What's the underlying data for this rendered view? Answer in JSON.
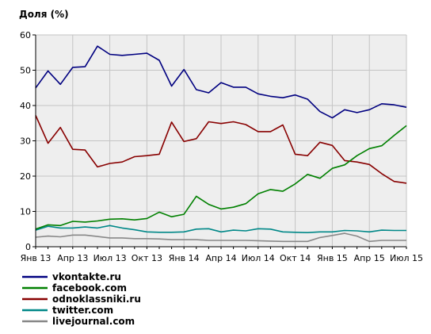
{
  "chart_data": {
    "type": "line",
    "ylabel": "Доля (%)",
    "xlabel": "",
    "ylim": [
      0,
      60
    ],
    "yticks": [
      0,
      10,
      20,
      30,
      40,
      50,
      60
    ],
    "grid": true,
    "legend_position": "bottom-left",
    "x": [
      "2013-01",
      "2013-02",
      "2013-03",
      "2013-04",
      "2013-05",
      "2013-06",
      "2013-07",
      "2013-08",
      "2013-09",
      "2013-10",
      "2013-11",
      "2013-12",
      "2014-01",
      "2014-02",
      "2014-03",
      "2014-04",
      "2014-05",
      "2014-06",
      "2014-07",
      "2014-08",
      "2014-09",
      "2014-10",
      "2014-11",
      "2014-12",
      "2015-01",
      "2015-02",
      "2015-03",
      "2015-04",
      "2015-05",
      "2015-06",
      "2015-07"
    ],
    "xtick_labels": [
      "Янв 13",
      "Апр 13",
      "Июл 13",
      "Окт 13",
      "Янв 14",
      "Апр 14",
      "Июл 14",
      "Окт 14",
      "Янв 15",
      "Апр 15",
      "Июл 15"
    ],
    "series": [
      {
        "name": "vkontakte.ru",
        "color": "#000080",
        "values": [
          45,
          49.8,
          46,
          50.8,
          51,
          56.8,
          54.5,
          54.2,
          54.5,
          54.8,
          52.8,
          45.5,
          50.2,
          44.5,
          43.6,
          46.5,
          45.2,
          45.2,
          43.3,
          42.6,
          42.2,
          43,
          41.8,
          38.3,
          36.5,
          38.8,
          38,
          38.8,
          40.5,
          40.2,
          39.5
        ]
      },
      {
        "name": "facebook.com",
        "color": "#008000",
        "values": [
          5,
          6.2,
          6,
          7.2,
          7,
          7.3,
          7.8,
          7.9,
          7.6,
          8,
          9.8,
          8.5,
          9.2,
          14.3,
          12,
          10.7,
          11.2,
          12.2,
          15,
          16.2,
          15.7,
          17.8,
          20.5,
          19.4,
          22.2,
          23.2,
          25.8,
          27.8,
          28.6,
          31.5,
          34.3
        ]
      },
      {
        "name": "odnoklassniki.ru",
        "color": "#880000",
        "values": [
          37.2,
          29.3,
          33.8,
          27.6,
          27.4,
          22.6,
          23.6,
          24,
          25.5,
          25.8,
          26.2,
          35.3,
          29.8,
          30.6,
          35.4,
          34.9,
          35.4,
          34.6,
          32.6,
          32.6,
          34.5,
          26.2,
          25.8,
          29.6,
          28.7,
          24.4,
          24,
          23.3,
          20.7,
          18.5,
          18
        ]
      },
      {
        "name": "twitter.com",
        "color": "#008888",
        "values": [
          4.7,
          5.8,
          5.3,
          5.3,
          5.6,
          5.3,
          6,
          5.3,
          4.8,
          4.2,
          4.1,
          4.1,
          4.2,
          5,
          5.1,
          4.2,
          4.7,
          4.5,
          5.1,
          5,
          4.2,
          4.1,
          4,
          4.2,
          4.2,
          4.6,
          4.5,
          4.2,
          4.7,
          4.6,
          4.6
        ]
      },
      {
        "name": "livejournal.com",
        "color": "#888888",
        "values": [
          2.7,
          3,
          2.8,
          3.3,
          3.3,
          2.9,
          2.5,
          2.5,
          2.3,
          2.3,
          2.2,
          2,
          2,
          2,
          1.8,
          1.8,
          1.8,
          1.8,
          1.7,
          1.6,
          1.5,
          1.5,
          1.5,
          2.6,
          3.2,
          3.8,
          3,
          1.5,
          1.8,
          1.8,
          1.8
        ]
      }
    ]
  }
}
